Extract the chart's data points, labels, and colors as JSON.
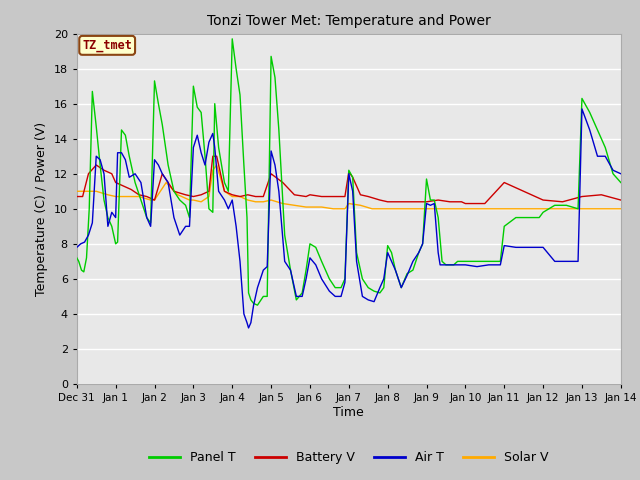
{
  "title": "Tonzi Tower Met: Temperature and Power",
  "xlabel": "Time",
  "ylabel": "Temperature (C) / Power (V)",
  "ylim": [
    0,
    20
  ],
  "yticks": [
    0,
    2,
    4,
    6,
    8,
    10,
    12,
    14,
    16,
    18,
    20
  ],
  "legend_label": "TZ_tmet",
  "fig_bg": "#c8c8c8",
  "plot_bg": "#e8e8e8",
  "grid_color": "#ffffff",
  "colors": {
    "Panel T": "#00cc00",
    "Battery V": "#cc0000",
    "Air T": "#0000cc",
    "Solar V": "#ffaa00"
  },
  "x_tick_labels": [
    "Dec 31",
    "Jan 1",
    "Jan 2",
    "Jan 3",
    "Jan 4",
    "Jan 5",
    "Jan 6",
    "Jan 7",
    "Jan 8",
    "Jan 9",
    "Jan 10",
    "Jan 11",
    "Jan 12",
    "Jan 13",
    "Jan 14"
  ],
  "series": {
    "Panel T": {
      "x": [
        0.0,
        0.05,
        0.12,
        0.18,
        0.25,
        0.32,
        0.4,
        0.5,
        0.6,
        0.7,
        0.8,
        0.9,
        1.0,
        1.05,
        1.15,
        1.25,
        1.35,
        1.5,
        1.65,
        1.8,
        1.9,
        2.0,
        2.1,
        2.2,
        2.35,
        2.5,
        2.65,
        2.8,
        2.9,
        3.0,
        3.1,
        3.2,
        3.3,
        3.4,
        3.5,
        3.55,
        3.65,
        3.8,
        3.9,
        4.0,
        4.1,
        4.2,
        4.3,
        4.38,
        4.42,
        4.48,
        4.55,
        4.65,
        4.8,
        4.9,
        5.0,
        5.1,
        5.2,
        5.35,
        5.5,
        5.65,
        5.8,
        5.9,
        6.0,
        6.15,
        6.3,
        6.5,
        6.65,
        6.8,
        6.9,
        7.0,
        7.1,
        7.2,
        7.35,
        7.5,
        7.65,
        7.8,
        7.9,
        8.0,
        8.1,
        8.2,
        8.35,
        8.5,
        8.65,
        8.8,
        8.9,
        9.0,
        9.1,
        9.2,
        9.3,
        9.4,
        9.5,
        9.6,
        9.7,
        9.8,
        9.9,
        10.0,
        10.3,
        10.6,
        10.9,
        11.0,
        11.3,
        11.6,
        11.9,
        12.0,
        12.3,
        12.6,
        12.9,
        13.0,
        13.2,
        13.4,
        13.6,
        13.8,
        14.0
      ],
      "y": [
        7.2,
        7.0,
        6.5,
        6.4,
        7.2,
        10.0,
        16.7,
        14.7,
        12.5,
        10.5,
        9.5,
        9.0,
        8.0,
        8.1,
        14.5,
        14.2,
        13.0,
        11.5,
        10.5,
        9.5,
        9.2,
        17.3,
        16.0,
        14.8,
        12.5,
        11.0,
        10.5,
        10.2,
        9.5,
        17.0,
        15.8,
        15.5,
        13.0,
        10.0,
        9.8,
        16.0,
        13.5,
        11.5,
        11.0,
        19.7,
        18.0,
        16.5,
        12.5,
        9.5,
        5.2,
        4.8,
        4.6,
        4.5,
        5.0,
        5.0,
        18.7,
        17.5,
        14.5,
        8.5,
        6.5,
        4.8,
        5.2,
        6.5,
        8.0,
        7.8,
        7.0,
        6.0,
        5.5,
        5.5,
        6.0,
        12.2,
        11.8,
        7.5,
        6.0,
        5.5,
        5.3,
        5.2,
        5.5,
        7.9,
        7.5,
        6.5,
        5.5,
        6.3,
        6.5,
        7.5,
        8.0,
        11.7,
        10.5,
        10.5,
        9.5,
        7.0,
        6.8,
        6.8,
        6.8,
        7.0,
        7.0,
        7.0,
        7.0,
        7.0,
        7.0,
        9.0,
        9.5,
        9.5,
        9.5,
        9.8,
        10.2,
        10.2,
        10.0,
        16.3,
        15.5,
        14.5,
        13.5,
        12.0,
        11.5
      ]
    },
    "Battery V": {
      "x": [
        0.0,
        0.15,
        0.3,
        0.5,
        0.7,
        0.9,
        1.0,
        1.2,
        1.4,
        1.6,
        1.8,
        2.0,
        2.2,
        2.5,
        2.8,
        3.0,
        3.2,
        3.4,
        3.5,
        3.6,
        3.8,
        4.0,
        4.2,
        4.4,
        4.6,
        4.8,
        5.0,
        5.3,
        5.6,
        5.9,
        6.0,
        6.3,
        6.6,
        6.9,
        7.0,
        7.1,
        7.3,
        7.5,
        7.8,
        8.0,
        8.3,
        8.6,
        8.9,
        9.0,
        9.3,
        9.6,
        9.9,
        10.0,
        10.5,
        11.0,
        11.3,
        11.5,
        12.0,
        12.5,
        13.0,
        13.5,
        14.0
      ],
      "y": [
        10.7,
        10.7,
        12.0,
        12.5,
        12.2,
        12.0,
        11.5,
        11.3,
        11.1,
        10.8,
        10.7,
        10.5,
        12.0,
        11.0,
        10.8,
        10.7,
        10.8,
        11.0,
        13.0,
        13.0,
        11.0,
        10.8,
        10.7,
        10.8,
        10.7,
        10.7,
        12.0,
        11.5,
        10.8,
        10.7,
        10.8,
        10.7,
        10.7,
        10.7,
        12.1,
        11.8,
        10.8,
        10.7,
        10.5,
        10.4,
        10.4,
        10.4,
        10.4,
        10.4,
        10.5,
        10.4,
        10.4,
        10.3,
        10.3,
        11.5,
        11.2,
        11.0,
        10.5,
        10.4,
        10.7,
        10.8,
        10.5
      ]
    },
    "Air T": {
      "x": [
        0.0,
        0.05,
        0.1,
        0.2,
        0.3,
        0.4,
        0.5,
        0.6,
        0.7,
        0.8,
        0.9,
        1.0,
        1.05,
        1.15,
        1.25,
        1.35,
        1.5,
        1.65,
        1.8,
        1.9,
        2.0,
        2.1,
        2.2,
        2.35,
        2.5,
        2.65,
        2.8,
        2.9,
        3.0,
        3.1,
        3.2,
        3.3,
        3.4,
        3.5,
        3.55,
        3.65,
        3.8,
        3.9,
        4.0,
        4.1,
        4.2,
        4.3,
        4.38,
        4.42,
        4.48,
        4.55,
        4.65,
        4.8,
        4.9,
        5.0,
        5.1,
        5.2,
        5.35,
        5.5,
        5.65,
        5.8,
        5.9,
        6.0,
        6.15,
        6.3,
        6.5,
        6.65,
        6.8,
        6.9,
        7.0,
        7.1,
        7.2,
        7.35,
        7.5,
        7.65,
        7.8,
        7.9,
        8.0,
        8.1,
        8.2,
        8.35,
        8.5,
        8.65,
        8.8,
        8.9,
        9.0,
        9.1,
        9.2,
        9.3,
        9.35,
        9.4,
        9.5,
        9.6,
        9.7,
        9.8,
        9.9,
        10.0,
        10.3,
        10.6,
        10.9,
        11.0,
        11.3,
        11.6,
        11.9,
        12.0,
        12.3,
        12.6,
        12.9,
        13.0,
        13.2,
        13.4,
        13.6,
        13.8,
        14.0
      ],
      "y": [
        7.8,
        7.9,
        8.0,
        8.1,
        8.5,
        9.2,
        13.0,
        12.8,
        12.0,
        9.0,
        9.8,
        9.5,
        13.2,
        13.2,
        12.8,
        11.8,
        12.0,
        11.5,
        9.5,
        9.0,
        12.8,
        12.5,
        12.0,
        11.5,
        9.5,
        8.5,
        9.0,
        9.0,
        13.5,
        14.2,
        13.2,
        12.5,
        13.8,
        14.3,
        13.5,
        11.0,
        10.5,
        10.0,
        10.5,
        9.0,
        7.0,
        4.0,
        3.5,
        3.2,
        3.5,
        4.5,
        5.5,
        6.5,
        6.7,
        13.3,
        12.5,
        11.0,
        7.0,
        6.5,
        5.0,
        5.0,
        6.0,
        7.2,
        6.8,
        6.0,
        5.3,
        5.0,
        5.0,
        5.8,
        12.0,
        11.0,
        7.0,
        5.0,
        4.8,
        4.7,
        5.5,
        6.0,
        7.5,
        7.0,
        6.5,
        5.5,
        6.2,
        7.0,
        7.5,
        8.0,
        10.3,
        10.2,
        10.3,
        7.5,
        6.8,
        6.8,
        6.8,
        6.8,
        6.8,
        6.8,
        6.8,
        6.8,
        6.7,
        6.8,
        6.8,
        7.9,
        7.8,
        7.8,
        7.8,
        7.8,
        7.0,
        7.0,
        7.0,
        15.7,
        14.5,
        13.0,
        13.0,
        12.2,
        12.0
      ]
    },
    "Solar V": {
      "x": [
        0.0,
        0.2,
        0.5,
        0.8,
        1.0,
        1.3,
        1.6,
        1.9,
        2.0,
        2.3,
        2.6,
        2.9,
        3.0,
        3.2,
        3.4,
        3.5,
        3.6,
        3.8,
        4.0,
        4.2,
        4.4,
        4.6,
        4.8,
        5.0,
        5.3,
        5.6,
        5.9,
        6.0,
        6.3,
        6.6,
        6.9,
        7.0,
        7.3,
        7.6,
        7.9,
        8.0,
        8.3,
        8.6,
        8.9,
        9.0,
        9.3,
        9.6,
        9.9,
        10.0,
        10.5,
        11.0,
        11.5,
        12.0,
        12.5,
        13.0,
        13.5,
        14.0
      ],
      "y": [
        11.0,
        11.0,
        11.0,
        10.8,
        10.7,
        10.7,
        10.7,
        10.5,
        10.5,
        11.5,
        10.8,
        10.5,
        10.5,
        10.4,
        10.7,
        12.2,
        12.5,
        11.0,
        10.7,
        10.7,
        10.5,
        10.4,
        10.4,
        10.5,
        10.3,
        10.2,
        10.1,
        10.1,
        10.1,
        10.0,
        10.0,
        10.3,
        10.2,
        10.0,
        10.0,
        10.0,
        10.0,
        10.0,
        10.0,
        10.0,
        10.0,
        10.0,
        10.0,
        10.0,
        10.0,
        10.0,
        10.0,
        10.0,
        10.0,
        10.0,
        10.0,
        10.0
      ]
    }
  }
}
